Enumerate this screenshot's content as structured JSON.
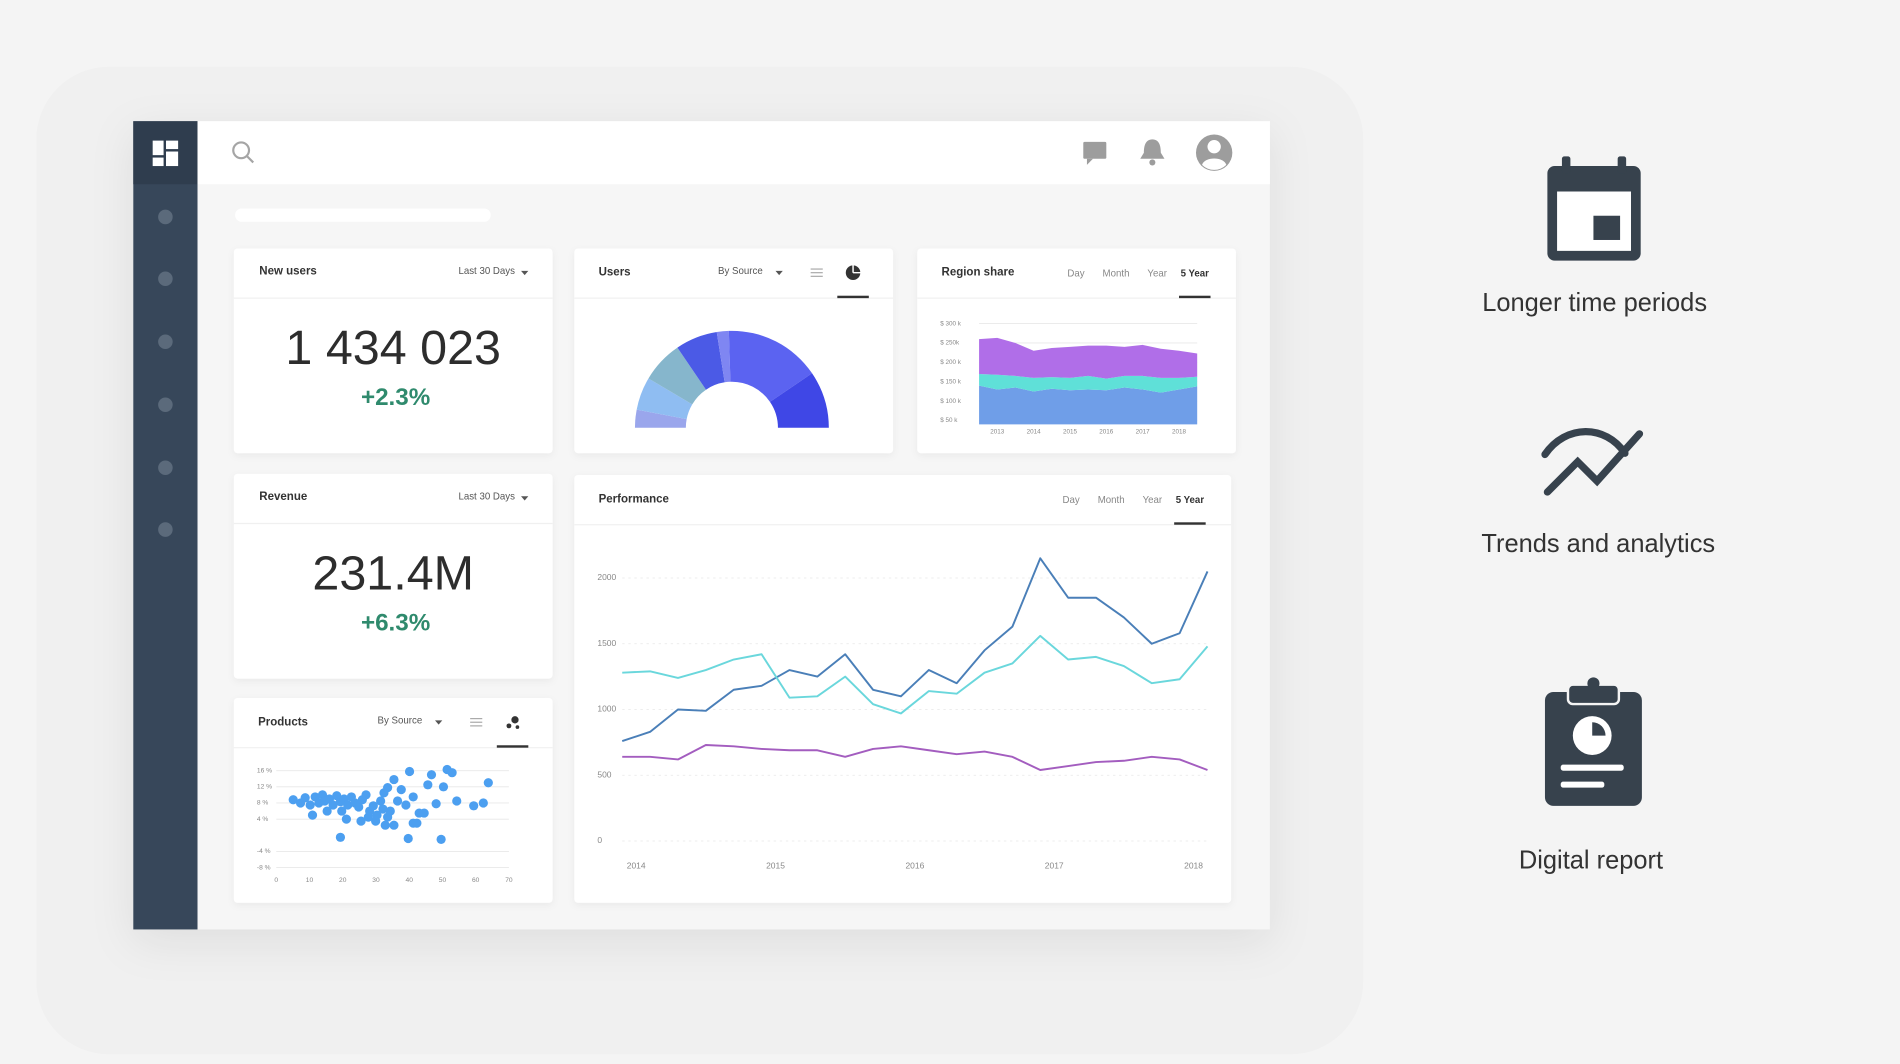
{
  "cards": [
    {
      "title": "New users",
      "period": "Last 30 Days",
      "value": "1 434 023",
      "change": "+2.3%"
    },
    {
      "title": "Revenue",
      "period": "Last 30 Days",
      "value": "231.4M",
      "change": "+6.3%"
    }
  ],
  "features": [
    "Longer time periods",
    "Trends and analytics",
    "Digital report"
  ],
  "chart_data": [
    {
      "type": "donut",
      "title": "Users",
      "filter": "By Source",
      "values": [
        6,
        11,
        14,
        14,
        4,
        32,
        19
      ],
      "colors": [
        "#9aa6ec",
        "#8fbdf2",
        "#86b6cc",
        "#4b5ae6",
        "#7f86f2",
        "#5b63f1",
        "#3f47e6"
      ]
    },
    {
      "type": "area",
      "title": "Region share",
      "tabs": [
        "Day",
        "Month",
        "Year",
        "5 Year"
      ],
      "active_tab": 3,
      "x": [
        2012.5,
        2013,
        2013.5,
        2014,
        2014.5,
        2015,
        2015.5,
        2016,
        2016.5,
        2017,
        2017.5,
        2018,
        2018.5
      ],
      "series": [
        {
          "color": "#6f9ee8",
          "values": [
            140000,
            130000,
            135000,
            125000,
            132000,
            128000,
            130000,
            128000,
            135000,
            130000,
            122000,
            130000,
            138000
          ]
        },
        {
          "color": "#5fe0d8",
          "values": [
            30000,
            38000,
            30000,
            35000,
            30000,
            32000,
            35000,
            30000,
            30000,
            35000,
            38000,
            30000,
            25000
          ]
        },
        {
          "color": "#b06ee8",
          "values": [
            90000,
            95000,
            85000,
            70000,
            75000,
            80000,
            78000,
            85000,
            75000,
            80000,
            75000,
            70000,
            60000
          ]
        }
      ],
      "xlim": [
        2012.5,
        2018.5
      ],
      "xticks": [
        2013,
        2014,
        2015,
        2016,
        2017,
        2018
      ],
      "ylim": [
        40000,
        310000
      ],
      "yticks": [
        {
          "value": 50000,
          "label": "$ 50 k"
        },
        {
          "value": 100000,
          "label": "$ 100 k"
        },
        {
          "value": 150000,
          "label": "$ 150 k"
        },
        {
          "value": 200000,
          "label": "$ 200 k"
        },
        {
          "value": 250000,
          "label": "$ 250k"
        },
        {
          "value": 300000,
          "label": "$ 300 k"
        }
      ],
      "grid": true
    },
    {
      "type": "line",
      "title": "Performance",
      "tabs": [
        "Day",
        "Month",
        "Year",
        "5 Year"
      ],
      "active_tab": 3,
      "x": [
        2013.9,
        2014.1,
        2014.3,
        2014.5,
        2014.7,
        2014.9,
        2015.1,
        2015.3,
        2015.5,
        2015.7,
        2015.9,
        2016.1,
        2016.3,
        2016.5,
        2016.7,
        2016.9,
        2017.1,
        2017.3,
        2017.5,
        2017.7,
        2017.9,
        2018.1
      ],
      "series": [
        {
          "color": "#4a7fb8",
          "values": [
            760,
            830,
            1000,
            990,
            1150,
            1180,
            1300,
            1250,
            1420,
            1150,
            1100,
            1300,
            1200,
            1450,
            1630,
            2150,
            1850,
            1850,
            1700,
            1500,
            1580,
            2050
          ]
        },
        {
          "color": "#6ad7dc",
          "values": [
            1280,
            1290,
            1240,
            1300,
            1380,
            1420,
            1090,
            1100,
            1250,
            1040,
            970,
            1140,
            1120,
            1280,
            1350,
            1560,
            1380,
            1400,
            1330,
            1200,
            1230,
            1480
          ]
        },
        {
          "color": "#a35dbf",
          "values": [
            640,
            640,
            620,
            730,
            720,
            700,
            690,
            690,
            640,
            700,
            720,
            690,
            660,
            680,
            640,
            540,
            570,
            600,
            610,
            640,
            620,
            540
          ]
        }
      ],
      "xlim": [
        2013.9,
        2018.1
      ],
      "xticks": [
        2014,
        2015,
        2016,
        2017,
        2018
      ],
      "ylim": [
        0,
        2300
      ],
      "yticks": [
        0,
        500,
        1000,
        1500,
        2000
      ],
      "grid": true
    },
    {
      "type": "scatter",
      "title": "Products",
      "filter": "By Source",
      "color": "#4c9ff0",
      "x": [
        5.1,
        7.3,
        8.7,
        10.2,
        11.7,
        12.8,
        13.9,
        14.6,
        16.0,
        17.1,
        18.2,
        19.3,
        20.4,
        21.5,
        22.6,
        23.7,
        24.8,
        25.9,
        27.0,
        28.1,
        29.2,
        30.3,
        31.4,
        32.4,
        33.5,
        34.3,
        35.4,
        36.5,
        37.6,
        39.0,
        40.1,
        41.2,
        42.3,
        43.0,
        44.5,
        45.6,
        46.7,
        48.1,
        49.6,
        50.3,
        51.4,
        52.9,
        54.3,
        19.7,
        21.1,
        15.3,
        10.9,
        25.5,
        27.7,
        29.9,
        32.8,
        19.3,
        39.7,
        33.5,
        59.4,
        62.3,
        63.8,
        41.2,
        35.4,
        32.1
      ],
      "values": [
        8.8,
        8.0,
        9.3,
        7.5,
        9.5,
        8.0,
        10.0,
        8.5,
        9.0,
        7.5,
        9.8,
        8.3,
        9.0,
        7.5,
        9.5,
        8.0,
        7.0,
        8.8,
        10.0,
        6.0,
        7.3,
        5.0,
        8.5,
        10.5,
        11.8,
        6.0,
        13.8,
        8.5,
        11.3,
        7.5,
        15.8,
        9.5,
        3.0,
        5.5,
        5.5,
        12.5,
        15.0,
        7.8,
        -1.0,
        12.0,
        16.3,
        15.5,
        8.5,
        6.0,
        4.0,
        6.0,
        5.0,
        3.5,
        4.5,
        3.5,
        2.5,
        -0.5,
        -0.8,
        4.5,
        7.3,
        8.0,
        13.0,
        3.0,
        2.5,
        6.5
      ],
      "xlim": [
        0,
        70
      ],
      "xticks": [
        0,
        10,
        20,
        30,
        40,
        50,
        60,
        70
      ],
      "ylim": [
        -9,
        18
      ],
      "yticks": [
        {
          "value": 16,
          "label": "16 %"
        },
        {
          "value": 12,
          "label": "12 %"
        },
        {
          "value": 8,
          "label": "8 %"
        },
        {
          "value": 4,
          "label": "4 %"
        },
        {
          "value": -4,
          "label": "-4 %"
        },
        {
          "value": -8,
          "label": "-8 %"
        }
      ],
      "grid": true
    }
  ]
}
